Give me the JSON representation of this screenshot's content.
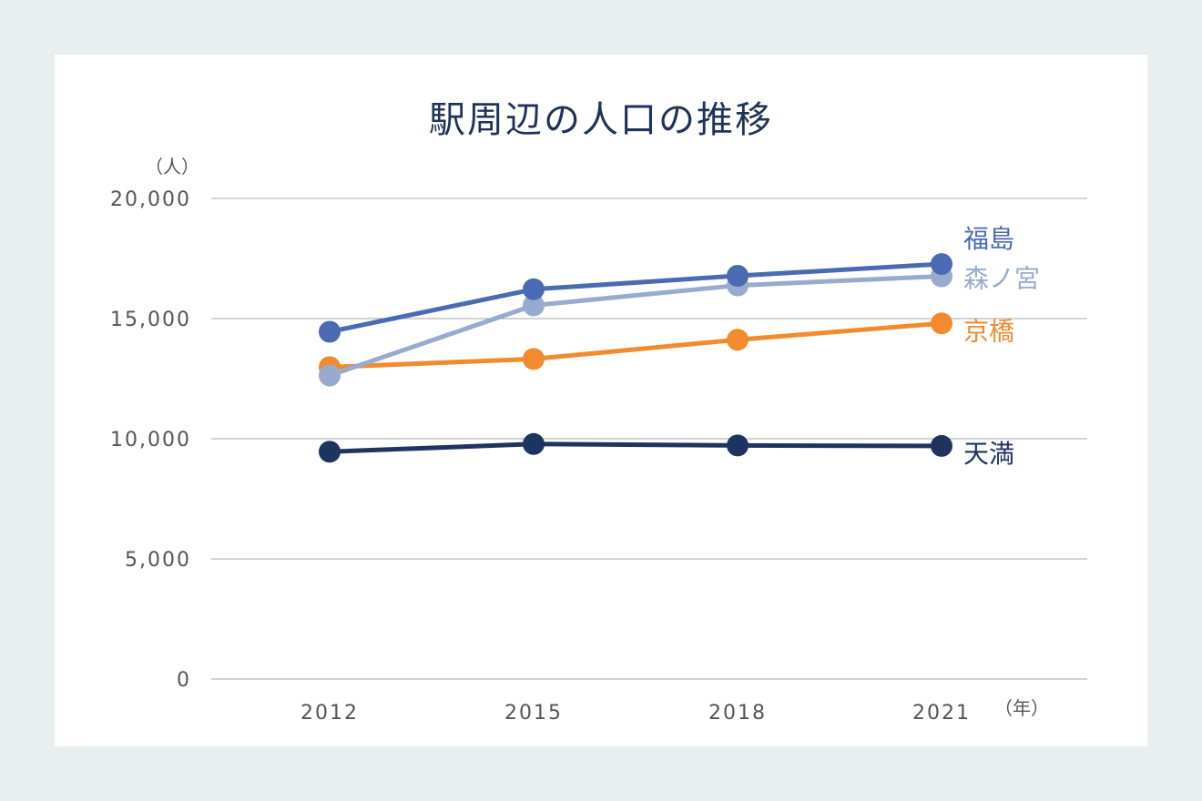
{
  "chart_data": {
    "type": "line",
    "title": "駅周辺の人口の推移",
    "y_unit": "（人）",
    "x_unit": "（年）",
    "categories": [
      "2012",
      "2015",
      "2018",
      "2021"
    ],
    "ylim": [
      0,
      20000
    ],
    "yticks": [
      0,
      5000,
      10000,
      15000,
      20000
    ],
    "ytick_labels": [
      "0",
      "5,000",
      "10,000",
      "15,000",
      "20,000"
    ],
    "grid": true,
    "series": [
      {
        "name": "福島",
        "color": "#4a6bb2",
        "values": [
          14450,
          16220,
          16780,
          17270
        ]
      },
      {
        "name": "森ノ宮",
        "color": "#97abce",
        "values": [
          12630,
          15550,
          16380,
          16760
        ]
      },
      {
        "name": "京橋",
        "color": "#f28b2e",
        "values": [
          12980,
          13320,
          14120,
          14800
        ]
      },
      {
        "name": "天満",
        "color": "#1e3460",
        "values": [
          9460,
          9780,
          9720,
          9700
        ]
      }
    ]
  }
}
